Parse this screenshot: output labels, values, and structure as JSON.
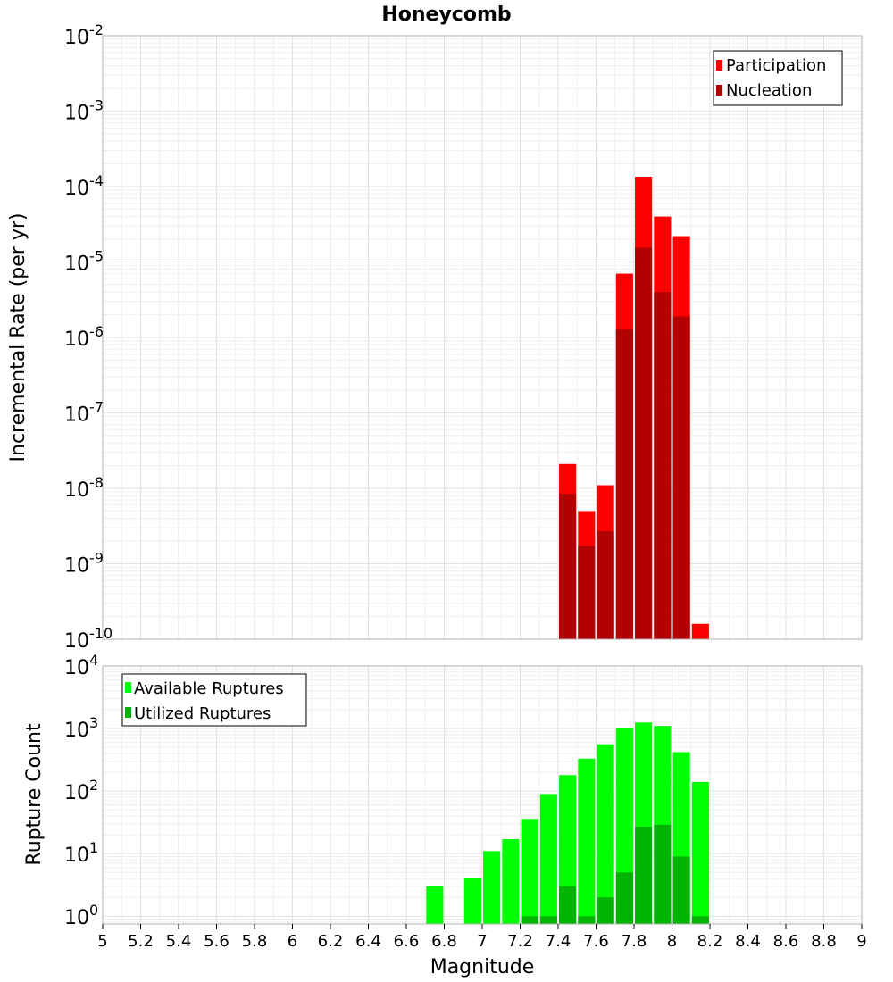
{
  "chart_data": [
    {
      "type": "bar",
      "title": "Honeycomb",
      "ylabel": "Incremental Rate (per yr)",
      "yscale": "log",
      "ylim": [
        1e-10,
        0.01
      ],
      "ytick_exponents": [
        "-10",
        "-9",
        "-8",
        "-7",
        "-6",
        "-5",
        "-4",
        "-3",
        "-2"
      ],
      "ytick_base": "10",
      "legend": "top-right",
      "grid": true,
      "bar_width": 0.09,
      "series": [
        {
          "name": "Participation",
          "color": "#ff0000",
          "x": [
            7.45,
            7.55,
            7.65,
            7.75,
            7.85,
            7.95,
            8.05,
            8.15
          ],
          "values": [
            2.1e-08,
            5e-09,
            1.1e-08,
            7e-06,
            0.000135,
            4e-05,
            2.2e-05,
            1.6e-10
          ]
        },
        {
          "name": "Nucleation",
          "color": "#b30000",
          "x": [
            7.45,
            7.55,
            7.65,
            7.75,
            7.85,
            7.95,
            8.05
          ],
          "values": [
            8.5e-09,
            1.7e-09,
            2.7e-09,
            1.3e-06,
            1.55e-05,
            4e-06,
            1.9e-06
          ]
        }
      ]
    },
    {
      "type": "bar",
      "xlabel": "Magnitude",
      "ylabel": "Rupture Count",
      "yscale": "log",
      "ylim": [
        0.75,
        10000
      ],
      "xlim": [
        5,
        9
      ],
      "ytick_exponents": [
        "0",
        "1",
        "2",
        "3",
        "4"
      ],
      "ytick_base": "10",
      "xticks": [
        "5",
        "5.2",
        "5.4",
        "5.6",
        "5.8",
        "6",
        "6.2",
        "6.4",
        "6.6",
        "6.8",
        "7",
        "7.2",
        "7.4",
        "7.6",
        "7.8",
        "8",
        "8.2",
        "8.4",
        "8.6",
        "8.8",
        "9"
      ],
      "legend": "top-left",
      "grid": true,
      "bar_width": 0.09,
      "series": [
        {
          "name": "Available Ruptures",
          "color": "#00ff00",
          "x": [
            6.75,
            6.95,
            7.05,
            7.15,
            7.25,
            7.35,
            7.45,
            7.55,
            7.65,
            7.75,
            7.85,
            7.95,
            8.05,
            8.15
          ],
          "values": [
            3,
            4,
            11,
            17,
            36,
            90,
            180,
            330,
            560,
            1000,
            1250,
            1100,
            420,
            140
          ]
        },
        {
          "name": "Utilized Ruptures",
          "color": "#00b300",
          "x": [
            7.25,
            7.35,
            7.45,
            7.55,
            7.65,
            7.75,
            7.85,
            7.95,
            8.05,
            8.15
          ],
          "values": [
            1,
            1,
            3,
            1,
            2,
            5,
            27,
            29,
            9,
            1
          ]
        }
      ]
    }
  ]
}
